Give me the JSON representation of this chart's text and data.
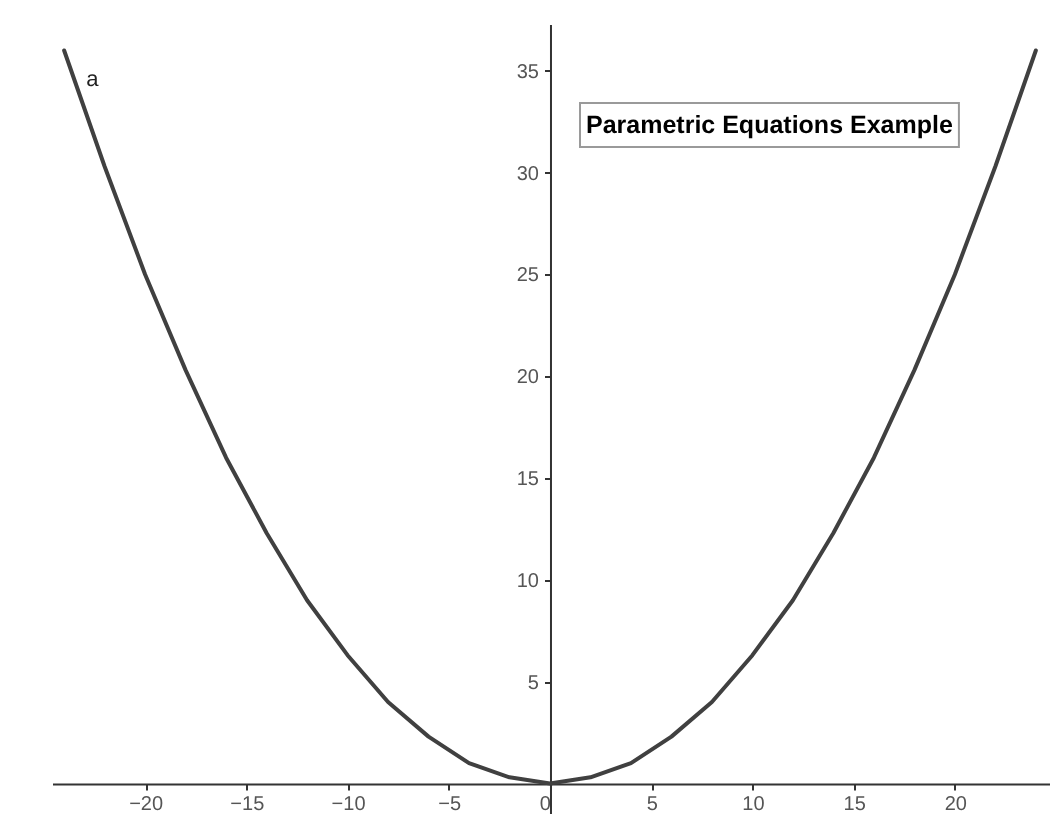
{
  "chart_data": {
    "type": "line",
    "title": "Parametric Equations Example",
    "x": [
      -24,
      -22,
      -20,
      -18,
      -16,
      -14,
      -12,
      -10,
      -8,
      -6,
      -4,
      -2,
      0,
      2,
      4,
      6,
      8,
      10,
      12,
      14,
      16,
      18,
      20,
      22,
      24
    ],
    "series": [
      {
        "name": "a",
        "color": "#404040",
        "values": [
          36,
          30.3,
          25,
          20.3,
          16,
          12.3,
          9,
          6.3,
          4,
          2.3,
          1,
          0.3,
          0,
          0.3,
          1,
          2.3,
          4,
          6.3,
          9,
          12.3,
          16,
          20.3,
          25,
          30.3,
          36
        ]
      }
    ],
    "xlim": [
      -24.6,
      24.7
    ],
    "ylim": [
      -1.5,
      37.3
    ],
    "xticks": [
      -20,
      -15,
      -10,
      -5,
      0,
      5,
      10,
      15,
      20
    ],
    "yticks": [
      5,
      10,
      15,
      20,
      25,
      30,
      35
    ],
    "grid": false,
    "legend": false,
    "line_style": "solid"
  }
}
